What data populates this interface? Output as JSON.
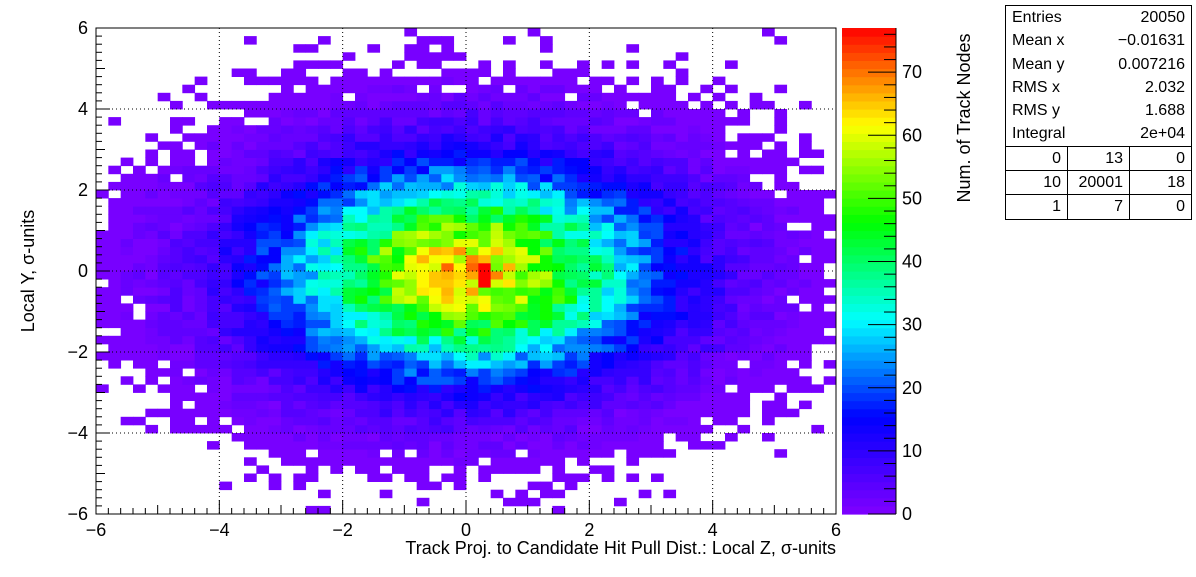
{
  "chart_data": {
    "type": "heatmap",
    "xlabel": "Track Proj. to Candidate Hit Pull Dist.: Local Z, σ-units",
    "ylabel": "Local Y, σ-units",
    "colorbar_label": "Num. of Track Nodes",
    "xlim": [
      -6,
      6
    ],
    "ylim": [
      -6,
      6
    ],
    "zlim": [
      0,
      77
    ],
    "x_ticks": [
      "−6",
      "−4",
      "−2",
      "0",
      "2",
      "4",
      "6"
    ],
    "y_ticks": [
      "−6",
      "−4",
      "−2",
      "0",
      "2",
      "4",
      "6"
    ],
    "z_ticks": [
      "0",
      "10",
      "20",
      "30",
      "40",
      "50",
      "60",
      "70"
    ],
    "grid": true,
    "bins": [
      60,
      60
    ],
    "distribution": {
      "model": "2D Gaussian (approximate reading of the density)",
      "mean_x": 0.0,
      "mean_y": 0.0,
      "sigma_x": 2.03,
      "sigma_y": 1.69,
      "peak_count": 77,
      "peak_at": [
        0.25,
        -0.1
      ]
    },
    "palette": [
      "#8000ff",
      "#0000ff",
      "#00ffff",
      "#00ff00",
      "#ffff00",
      "#ff0000"
    ]
  },
  "stats_box": {
    "rows": [
      {
        "label": "Entries",
        "value": "20050"
      },
      {
        "label": "Mean x",
        "value": "−0.01631"
      },
      {
        "label": "Mean y",
        "value": "0.007216"
      },
      {
        "label": "RMS x",
        "value": "2.032"
      },
      {
        "label": "RMS y",
        "value": "1.688"
      },
      {
        "label": "Integral",
        "value": "2e+04"
      }
    ],
    "overflow": [
      [
        "0",
        "13",
        "0"
      ],
      [
        "10",
        "20001",
        "18"
      ],
      [
        "1",
        "7",
        "0"
      ]
    ]
  }
}
